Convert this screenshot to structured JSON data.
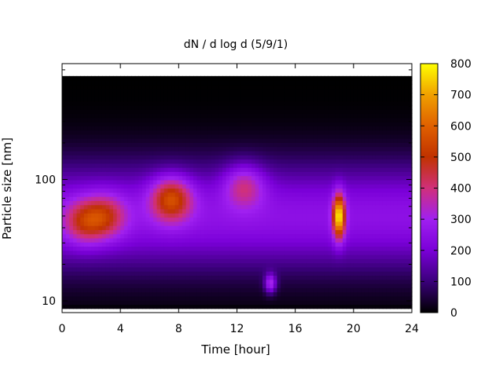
{
  "chart_data": {
    "type": "heatmap",
    "title": "dN / d log d (5/9/1)",
    "xlabel": "Time [hour]",
    "ylabel": "Particle size [nm]",
    "xlim": [
      0,
      24
    ],
    "x_ticks": [
      0,
      4,
      8,
      12,
      16,
      20,
      24
    ],
    "x_tick_labels": [
      "0",
      "4",
      "8",
      "12",
      "16",
      "20",
      "24"
    ],
    "y_scale": "log",
    "ylim": [
      8,
      900
    ],
    "y_ticks": [
      10,
      100
    ],
    "y_tick_labels": [
      "10",
      "100"
    ],
    "colorbar": {
      "min": 0,
      "max": 800,
      "ticks": [
        0,
        100,
        200,
        300,
        400,
        500,
        600,
        700,
        800
      ],
      "tick_labels": [
        "0",
        "100",
        "200",
        "300",
        "400",
        "500",
        "600",
        "700",
        "800"
      ],
      "colormap": [
        "#000000",
        "#3a007a",
        "#7a00d8",
        "#a020f0",
        "#d0307a",
        "#c03200",
        "#e06000",
        "#f0a000",
        "#ffff00"
      ]
    },
    "grid": false,
    "series_description": "Particle number size distribution over a day; mode near 40-50 nm from 0-5 h (~400), strong mode 50-100 nm from 6-9 h (~500-550), weaker ~400 near 12.5 h at ~90 nm, narrow burst ~14.3 h at ~14 nm (~450), intense peak ~19 h at 40-60 nm (~750).",
    "peaks": [
      {
        "t": 1.5,
        "d": 45,
        "value": 430
      },
      {
        "t": 3.0,
        "d": 50,
        "value": 420
      },
      {
        "t": 7.5,
        "d": 70,
        "value": 540
      },
      {
        "t": 12.5,
        "d": 90,
        "value": 410
      },
      {
        "t": 14.3,
        "d": 14,
        "value": 460
      },
      {
        "t": 19.0,
        "d": 50,
        "value": 760
      }
    ]
  }
}
